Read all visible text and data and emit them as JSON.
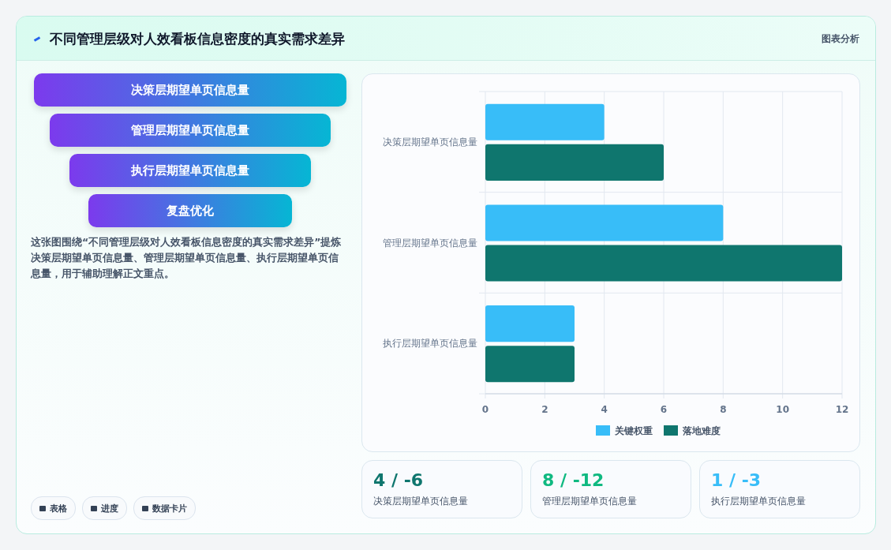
{
  "chart_data": [
    {
      "type": "other",
      "title": "不同管理层级对人效看板信息密度的真实需求差异",
      "subtitle": "图表分析",
      "annotations": [
        "决策层期望单页信息量",
        "管理层期望单页信息量",
        "执行层期望单页信息量",
        "复盘优化",
        "这张图围绕“不同管理层级对人效看板信息密度的真实需求差异”提炼决策层期望单页信息量、管理层期望单页信息量、执行层期望单页信息量，用于辅助理解正文重点。",
        "表格",
        "进度",
        "数据卡片"
      ]
    },
    {
      "type": "bar",
      "orientation": "horizontal",
      "categories": [
        "决策层期望单页信息量",
        "管理层期望单页信息量",
        "执行层期望单页信息量"
      ],
      "series": [
        {
          "name": "关键权重",
          "color": "#38bdf8",
          "values": [
            4,
            8,
            3
          ]
        },
        {
          "name": "落地难度",
          "color": "#0f766e",
          "values": [
            6,
            12,
            3
          ]
        }
      ],
      "xlim": [
        0,
        12
      ],
      "xticks": [
        0,
        2,
        4,
        6,
        8,
        10,
        12
      ],
      "grid": true,
      "legend": "bottom"
    },
    {
      "type": "other",
      "annotations": [
        "4 / -6",
        "决策层期望单页信息量",
        "8 / -12",
        "管理层期望单页信息量",
        "1 / -3",
        "执行层期望单页信息量"
      ]
    }
  ]
}
